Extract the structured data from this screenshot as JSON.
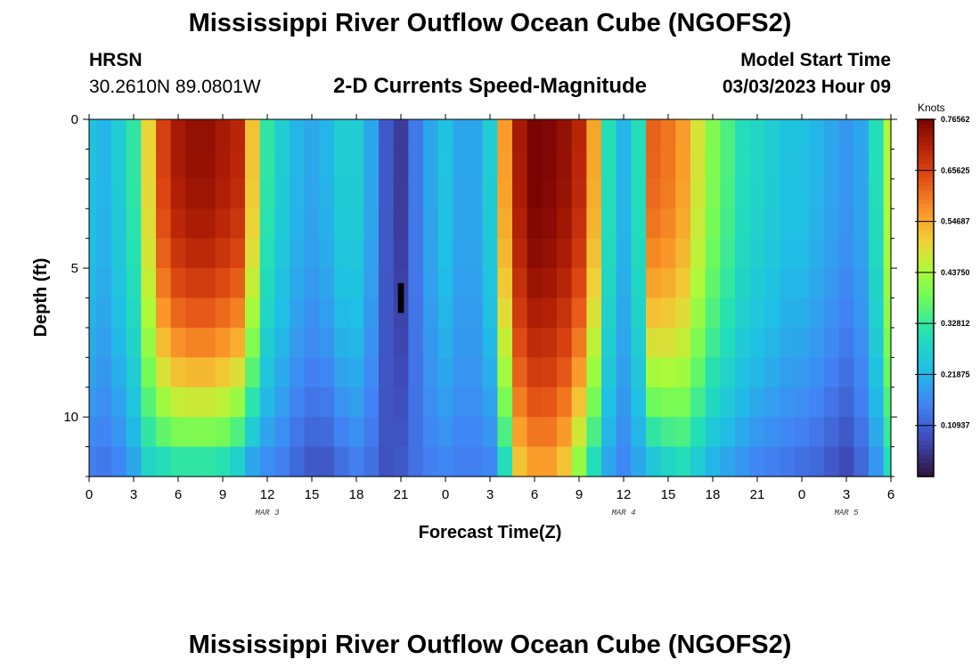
{
  "header": {
    "title": "Mississippi River Outflow Ocean Cube (NGOFS2)",
    "station": "HRSN",
    "coords": "30.2610N  89.0801W",
    "subtitle": "2-D Currents Speed-Magnitude",
    "model_label": "Model Start Time",
    "model_time": "03/03/2023 Hour 09"
  },
  "footer": {
    "title": "Mississippi River Outflow Ocean Cube (NGOFS2)"
  },
  "chart_data": {
    "type": "heatmap",
    "title": "2-D Currents Speed-Magnitude",
    "xlabel": "Forecast Time(Z)",
    "ylabel": "Depth (ft)",
    "xlim": [
      0,
      54
    ],
    "ylim": [
      0,
      12
    ],
    "x_ticks": [
      0,
      3,
      6,
      9,
      12,
      15,
      18,
      21,
      24,
      27,
      30,
      33,
      36,
      39,
      42,
      45,
      48,
      51,
      54
    ],
    "x_tick_labels": [
      "0",
      "3",
      "6",
      "9",
      "12",
      "15",
      "18",
      "21",
      "0",
      "3",
      "6",
      "9",
      "12",
      "15",
      "18",
      "21",
      "0",
      "3",
      "6"
    ],
    "y_ticks": [
      0,
      5,
      10
    ],
    "y_tick_labels": [
      "0",
      "5",
      "10"
    ],
    "day_labels": [
      {
        "x": 12,
        "label": "MAR 3"
      },
      {
        "x": 36,
        "label": "MAR 4"
      },
      {
        "x": 51,
        "label": "MAR 5"
      }
    ],
    "colorbar": {
      "unit": "Knots",
      "min": 0.0,
      "max": 0.76562,
      "tick_values": [
        0.76562,
        0.65625,
        0.54687,
        0.4375,
        0.32812,
        0.21875,
        0.10937
      ],
      "tick_labels": [
        "0.76562",
        "0.65625",
        "0.54687",
        "0.43750",
        "0.32812",
        "0.21875",
        "0.10937"
      ]
    },
    "colormap": "turbo",
    "time_step_hours": 1,
    "depth_layers": 12,
    "speed_profile": [
      {
        "hour": 0,
        "surface": 0.24,
        "bottom": 0.15
      },
      {
        "hour": 1,
        "surface": 0.22,
        "bottom": 0.14
      },
      {
        "hour": 2,
        "surface": 0.26,
        "bottom": 0.16
      },
      {
        "hour": 3,
        "surface": 0.32,
        "bottom": 0.2
      },
      {
        "hour": 4,
        "surface": 0.5,
        "bottom": 0.28
      },
      {
        "hour": 5,
        "surface": 0.66,
        "bottom": 0.3
      },
      {
        "hour": 6,
        "surface": 0.72,
        "bottom": 0.32
      },
      {
        "hour": 7,
        "surface": 0.74,
        "bottom": 0.32
      },
      {
        "hour": 8,
        "surface": 0.74,
        "bottom": 0.32
      },
      {
        "hour": 9,
        "surface": 0.72,
        "bottom": 0.31
      },
      {
        "hour": 10,
        "surface": 0.7,
        "bottom": 0.27
      },
      {
        "hour": 11,
        "surface": 0.52,
        "bottom": 0.2
      },
      {
        "hour": 12,
        "surface": 0.32,
        "bottom": 0.17
      },
      {
        "hour": 13,
        "surface": 0.26,
        "bottom": 0.15
      },
      {
        "hour": 14,
        "surface": 0.22,
        "bottom": 0.12
      },
      {
        "hour": 15,
        "surface": 0.2,
        "bottom": 0.1
      },
      {
        "hour": 16,
        "surface": 0.22,
        "bottom": 0.1
      },
      {
        "hour": 17,
        "surface": 0.26,
        "bottom": 0.13
      },
      {
        "hour": 18,
        "surface": 0.26,
        "bottom": 0.15
      },
      {
        "hour": 19,
        "surface": 0.2,
        "bottom": 0.13
      },
      {
        "hour": 20,
        "surface": 0.1,
        "bottom": 0.09
      },
      {
        "hour": 21,
        "surface": 0.06,
        "bottom": 0.1
      },
      {
        "hour": 22,
        "surface": 0.14,
        "bottom": 0.13
      },
      {
        "hour": 23,
        "surface": 0.2,
        "bottom": 0.15
      },
      {
        "hour": 24,
        "surface": 0.24,
        "bottom": 0.16
      },
      {
        "hour": 25,
        "surface": 0.2,
        "bottom": 0.15
      },
      {
        "hour": 26,
        "surface": 0.2,
        "bottom": 0.15
      },
      {
        "hour": 27,
        "surface": 0.26,
        "bottom": 0.16
      },
      {
        "hour": 28,
        "surface": 0.56,
        "bottom": 0.3
      },
      {
        "hour": 29,
        "surface": 0.72,
        "bottom": 0.52
      },
      {
        "hour": 30,
        "surface": 0.77,
        "bottom": 0.56
      },
      {
        "hour": 31,
        "surface": 0.76,
        "bottom": 0.56
      },
      {
        "hour": 32,
        "surface": 0.74,
        "bottom": 0.52
      },
      {
        "hour": 33,
        "surface": 0.7,
        "bottom": 0.42
      },
      {
        "hour": 34,
        "surface": 0.55,
        "bottom": 0.3
      },
      {
        "hour": 35,
        "surface": 0.3,
        "bottom": 0.2
      },
      {
        "hour": 36,
        "surface": 0.22,
        "bottom": 0.16
      },
      {
        "hour": 37,
        "surface": 0.3,
        "bottom": 0.2
      },
      {
        "hour": 38,
        "surface": 0.62,
        "bottom": 0.25
      },
      {
        "hour": 39,
        "surface": 0.6,
        "bottom": 0.28
      },
      {
        "hour": 40,
        "surface": 0.56,
        "bottom": 0.3
      },
      {
        "hour": 41,
        "surface": 0.48,
        "bottom": 0.26
      },
      {
        "hour": 42,
        "surface": 0.4,
        "bottom": 0.22
      },
      {
        "hour": 43,
        "surface": 0.35,
        "bottom": 0.2
      },
      {
        "hour": 44,
        "surface": 0.3,
        "bottom": 0.18
      },
      {
        "hour": 45,
        "surface": 0.28,
        "bottom": 0.16
      },
      {
        "hour": 46,
        "surface": 0.26,
        "bottom": 0.15
      },
      {
        "hour": 47,
        "surface": 0.24,
        "bottom": 0.14
      },
      {
        "hour": 48,
        "surface": 0.24,
        "bottom": 0.13
      },
      {
        "hour": 49,
        "surface": 0.22,
        "bottom": 0.12
      },
      {
        "hour": 50,
        "surface": 0.2,
        "bottom": 0.1
      },
      {
        "hour": 51,
        "surface": 0.18,
        "bottom": 0.08
      },
      {
        "hour": 52,
        "surface": 0.2,
        "bottom": 0.12
      },
      {
        "hour": 53,
        "surface": 0.3,
        "bottom": 0.18
      },
      {
        "hour": 54,
        "surface": 0.45,
        "bottom": 0.3
      }
    ],
    "min_speed_cell": {
      "hour": 21,
      "depth_ft": 6
    }
  }
}
